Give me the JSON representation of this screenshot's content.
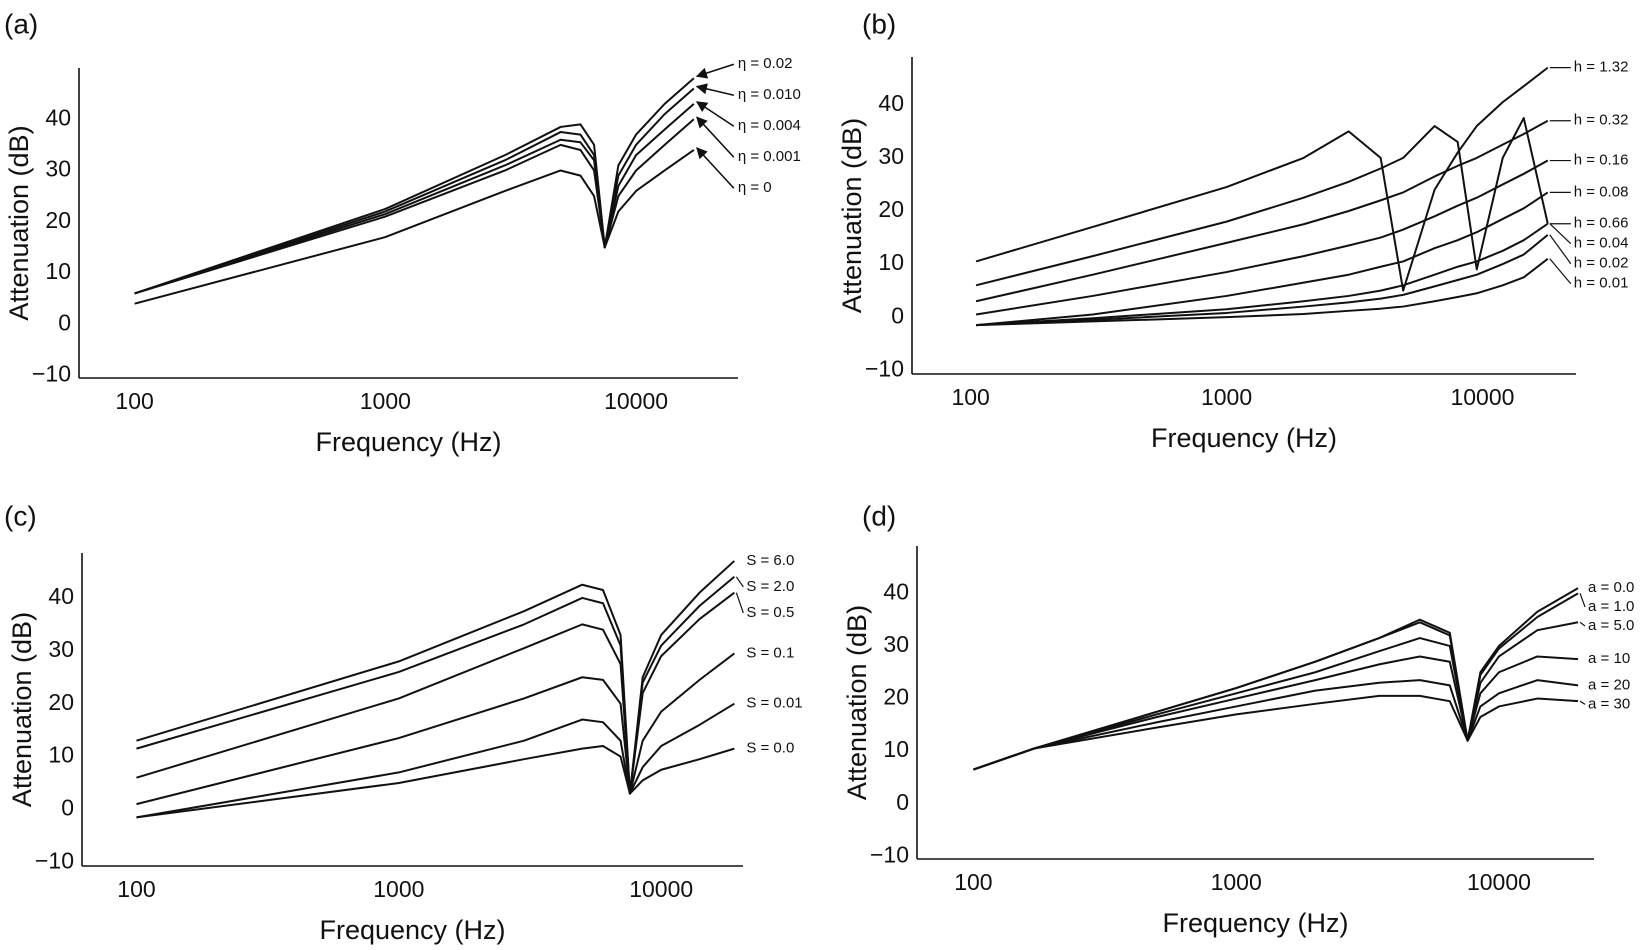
{
  "chart_data": [
    {
      "type": "line",
      "panel_label": "(a)",
      "xlabel": "Frequency (Hz)",
      "ylabel": "Attenuation (dB)",
      "xscale": "log",
      "grid": false,
      "color": "#111111",
      "xlim": [
        60,
        25500
      ],
      "ylim": [
        -10.5,
        50
      ],
      "xticks": [
        100,
        1000,
        10000
      ],
      "yticks": [
        {
          "value": -10,
          "label": "−10"
        },
        0,
        10,
        20,
        30,
        40
      ],
      "x": [
        100,
        1000,
        3000,
        5000,
        6000,
        6800,
        7500,
        8500,
        10000,
        13000,
        17000
      ],
      "series": [
        {
          "name": "η = 0.02",
          "values": [
            6,
            22.5,
            33,
            38.5,
            39,
            35,
            15,
            31,
            37,
            43,
            48
          ]
        },
        {
          "name": "η = 0.010",
          "values": [
            6,
            22,
            32,
            37.5,
            37,
            33,
            15,
            29,
            35,
            41,
            46
          ]
        },
        {
          "name": "η = 0.004",
          "values": [
            6,
            21.5,
            31,
            36,
            35.5,
            32,
            15,
            27,
            33,
            38,
            43
          ]
        },
        {
          "name": "η = 0.001",
          "values": [
            6,
            21,
            30,
            35,
            34,
            30,
            15,
            25,
            30,
            35,
            40
          ]
        },
        {
          "name": "η = 0",
          "values": [
            4,
            17,
            26,
            30,
            29,
            25,
            15,
            22,
            26,
            30,
            34
          ]
        }
      ]
    },
    {
      "type": "line",
      "panel_label": "(b)",
      "xlabel": "Frequency (Hz)",
      "ylabel": "Attenuation (dB)",
      "xscale": "log",
      "grid": false,
      "color": "#111111",
      "xlim": [
        59,
        23200
      ],
      "ylim": [
        -10.7,
        49
      ],
      "xticks": [
        100,
        1000,
        10000
      ],
      "yticks": [
        {
          "value": -10,
          "label": "−10"
        },
        0,
        10,
        20,
        30,
        40
      ],
      "x": [
        105,
        300,
        1000,
        2000,
        3000,
        4000,
        4900,
        6500,
        8000,
        9500,
        12000,
        14500,
        18000
      ],
      "series": [
        {
          "name": "h = 1.32",
          "values": [
            10.5,
            17,
            24.5,
            30,
            35,
            30,
            5,
            24,
            31,
            36,
            40.5,
            43.5,
            47
          ]
        },
        {
          "name": "h = 0.66",
          "values": [
            6,
            11.5,
            18,
            22.5,
            25.5,
            28,
            30,
            36,
            33,
            9,
            30,
            37.5,
            17.6
          ]
        },
        {
          "name": "h = 0.32",
          "values": [
            3,
            8,
            14,
            17.5,
            20,
            22,
            23.5,
            26.5,
            28.5,
            30,
            32.5,
            34.5,
            37
          ]
        },
        {
          "name": "h = 0.16",
          "values": [
            0.5,
            4,
            8.5,
            11.5,
            13.5,
            15,
            16.5,
            19,
            21,
            22.5,
            25,
            27,
            29.5
          ]
        },
        {
          "name": "h = 0.08",
          "values": [
            -1.5,
            0.5,
            4,
            6.5,
            8,
            9.5,
            10.5,
            13,
            14.5,
            16,
            18.5,
            20.5,
            23.5
          ]
        },
        {
          "name": "h = 0.04",
          "values": [
            -1.5,
            -0.2,
            1.5,
            3,
            4,
            5,
            6,
            8,
            9.5,
            10.5,
            12.5,
            14.5,
            17.6
          ]
        },
        {
          "name": "h = 0.02",
          "values": [
            -1.5,
            -0.5,
            0.8,
            2,
            2.8,
            3.5,
            4.2,
            5.8,
            7,
            8,
            10,
            11.8,
            15.5
          ]
        },
        {
          "name": "h = 0.01",
          "values": [
            -1.5,
            -0.8,
            0,
            0.6,
            1.2,
            1.6,
            2,
            3,
            3.8,
            4.5,
            6,
            7.5,
            11
          ]
        }
      ]
    },
    {
      "type": "line",
      "panel_label": "(c)",
      "xlabel": "Frequency (Hz)",
      "ylabel": "Attenuation (dB)",
      "xscale": "log",
      "grid": false,
      "color": "#111111",
      "xlim": [
        62,
        20500
      ],
      "ylim": [
        -10.7,
        48.5
      ],
      "xticks": [
        100,
        1000,
        10000
      ],
      "yticks": [
        {
          "value": -10,
          "label": "−10"
        },
        0,
        10,
        20,
        30,
        40
      ],
      "x": [
        100,
        1000,
        3000,
        5000,
        6000,
        7000,
        7600,
        8500,
        10000,
        14000,
        19000
      ],
      "series": [
        {
          "name": "S = 6.0",
          "values": [
            13,
            28,
            37.5,
            42.5,
            41.5,
            33,
            3,
            25,
            33,
            41,
            47
          ]
        },
        {
          "name": "S = 2.0",
          "values": [
            11.5,
            26,
            35,
            40,
            39,
            31,
            3,
            24,
            31,
            38.5,
            44
          ]
        },
        {
          "name": "S = 0.5",
          "values": [
            6,
            21,
            30.5,
            35,
            34,
            27.5,
            3,
            22,
            29,
            36,
            41
          ]
        },
        {
          "name": "S = 0.1",
          "values": [
            1,
            13.5,
            21,
            25,
            24.5,
            20,
            3,
            13,
            18.5,
            24.5,
            29.5
          ]
        },
        {
          "name": "S = 0.01",
          "values": [
            -1.5,
            7,
            13,
            17,
            16.5,
            13,
            3,
            8,
            12,
            16,
            20
          ]
        },
        {
          "name": "S = 0.0",
          "values": [
            -1.5,
            5,
            9.5,
            11.5,
            12,
            10,
            3,
            5.5,
            7.5,
            9.5,
            11.5
          ]
        }
      ]
    },
    {
      "type": "line",
      "panel_label": "(d)",
      "xlabel": "Frequency (Hz)",
      "ylabel": "Attenuation (dB)",
      "xscale": "log",
      "grid": false,
      "color": "#111111",
      "xlim": [
        61,
        23000
      ],
      "ylim": [
        -10.5,
        49
      ],
      "xticks": [
        100,
        1000,
        10000
      ],
      "yticks": [
        {
          "value": -10,
          "label": "−10"
        },
        0,
        10,
        20,
        30,
        40
      ],
      "x": [
        100,
        170,
        500,
        1000,
        2000,
        3500,
        5000,
        6500,
        7600,
        8500,
        10000,
        14000,
        20000
      ],
      "series": [
        {
          "name": "a = 0.0",
          "values": [
            6.5,
            10.5,
            17.5,
            22,
            27,
            31.5,
            35,
            32.5,
            12,
            25,
            30,
            36.5,
            41
          ]
        },
        {
          "name": "a = 1.0",
          "values": [
            6.5,
            10.5,
            17.5,
            22,
            27,
            31.5,
            34.5,
            32,
            12,
            24.5,
            29.5,
            35.5,
            40
          ]
        },
        {
          "name": "a = 5.0",
          "values": [
            6.5,
            10.5,
            17,
            21,
            25,
            29,
            31.5,
            30,
            12,
            23,
            28,
            33,
            34.5
          ]
        },
        {
          "name": "a = 10",
          "values": [
            6.5,
            10.5,
            16.5,
            20,
            23.5,
            26.5,
            28,
            27,
            12,
            21,
            25,
            28,
            27.5
          ]
        },
        {
          "name": "a = 20",
          "values": [
            6.5,
            10.5,
            15.5,
            18.5,
            21.5,
            23,
            23.5,
            22.5,
            12,
            18.5,
            21,
            23.5,
            22.5
          ]
        },
        {
          "name": "a = 30",
          "values": [
            6.5,
            10.5,
            14.5,
            17,
            19,
            20.5,
            20.5,
            19.5,
            12,
            16.5,
            18.5,
            20,
            19.5
          ]
        }
      ]
    }
  ]
}
